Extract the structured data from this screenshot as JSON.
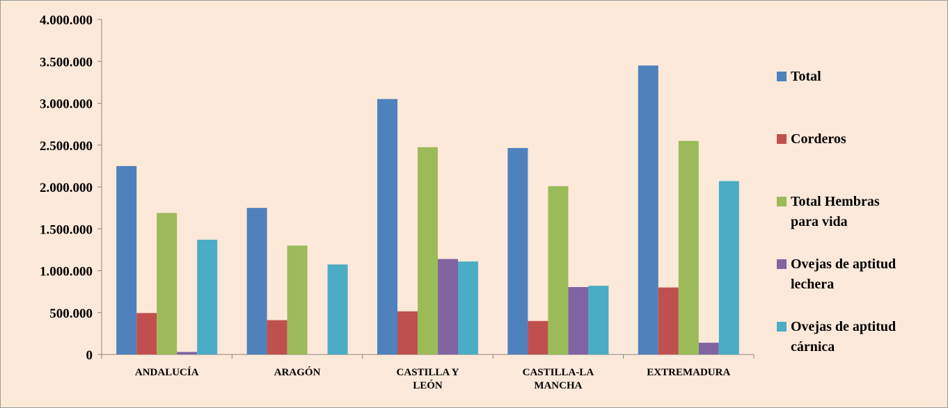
{
  "chart_data": {
    "type": "bar",
    "title": "",
    "xlabel": "",
    "ylabel": "",
    "ylim": [
      0,
      4000000
    ],
    "yticks": [
      0,
      500000,
      1000000,
      1500000,
      2000000,
      2500000,
      3000000,
      3500000,
      4000000
    ],
    "ytick_labels": [
      "0",
      "500.000",
      "1.000.000",
      "1.500.000",
      "2.000.000",
      "2.500.000",
      "3.000.000",
      "3.500.000",
      "4.000.000"
    ],
    "categories": [
      [
        "ANDALUCÍA"
      ],
      [
        "ARAGÓN"
      ],
      [
        "CASTILLA Y",
        "LEÓN"
      ],
      [
        "CASTILLA-LA",
        "MANCHA"
      ],
      [
        "EXTREMADURA"
      ]
    ],
    "legend_position": "right",
    "grid": false,
    "series": [
      {
        "name": [
          "Total"
        ],
        "color": "#4f81bd",
        "values": [
          2250000,
          1750000,
          3050000,
          2465000,
          3450000
        ]
      },
      {
        "name": [
          "Corderos"
        ],
        "color": "#c0504d",
        "values": [
          495000,
          410000,
          515000,
          400000,
          800000
        ]
      },
      {
        "name": [
          "Total Hembras",
          "para vida"
        ],
        "color": "#9bbb59",
        "values": [
          1690000,
          1300000,
          2475000,
          2010000,
          2550000
        ]
      },
      {
        "name": [
          "Ovejas de aptitud",
          "lechera"
        ],
        "color": "#8064a2",
        "values": [
          30000,
          0,
          1140000,
          805000,
          140000
        ]
      },
      {
        "name": [
          "Ovejas de aptitud",
          "cárnica"
        ],
        "color": "#4bacc6",
        "values": [
          1370000,
          1075000,
          1110000,
          820000,
          2070000
        ]
      }
    ]
  }
}
